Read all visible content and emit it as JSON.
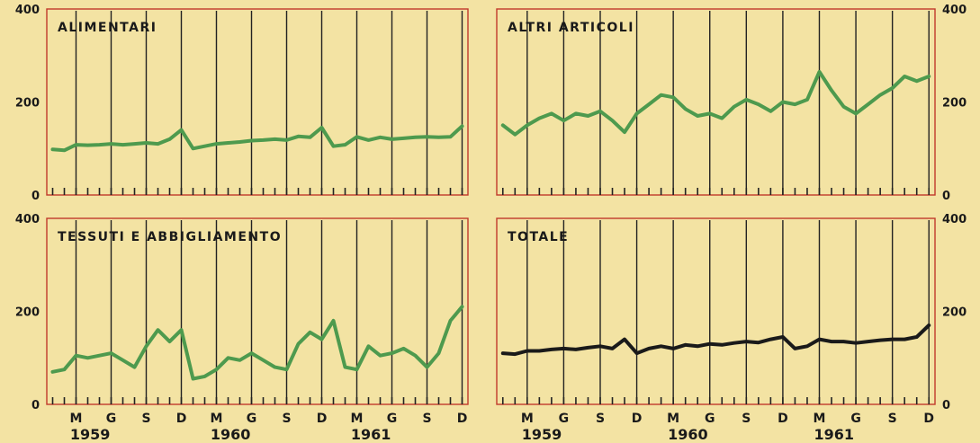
{
  "chart_data": [
    {
      "type": "line",
      "title": "ALIMENTARI",
      "ylim": [
        0,
        400
      ],
      "yticks": [
        "0",
        "200",
        "400"
      ],
      "x": [
        "1959-01",
        "1959-02",
        "1959-03",
        "1959-04",
        "1959-05",
        "1959-06",
        "1959-07",
        "1959-08",
        "1959-09",
        "1959-10",
        "1959-11",
        "1959-12",
        "1960-01",
        "1960-02",
        "1960-03",
        "1960-04",
        "1960-05",
        "1960-06",
        "1960-07",
        "1960-08",
        "1960-09",
        "1960-10",
        "1960-11",
        "1960-12",
        "1961-01",
        "1961-02",
        "1961-03",
        "1961-04",
        "1961-05",
        "1961-06",
        "1961-07",
        "1961-08",
        "1961-09",
        "1961-10",
        "1961-11",
        "1961-12"
      ],
      "series": [
        {
          "color": "#4e9a4e",
          "values": [
            98,
            96,
            108,
            107,
            108,
            110,
            108,
            110,
            112,
            110,
            120,
            140,
            100,
            105,
            110,
            112,
            114,
            117,
            118,
            120,
            118,
            126,
            124,
            145,
            105,
            108,
            125,
            118,
            124,
            120,
            122,
            124,
            125,
            124,
            125,
            148
          ]
        }
      ],
      "axis_side": "left",
      "grid": true
    },
    {
      "type": "line",
      "title": "ALTRI ARTICOLI",
      "ylim": [
        0,
        400
      ],
      "yticks": [
        "0",
        "200",
        "400"
      ],
      "x": [
        "1959-01",
        "1959-02",
        "1959-03",
        "1959-04",
        "1959-05",
        "1959-06",
        "1959-07",
        "1959-08",
        "1959-09",
        "1959-10",
        "1959-11",
        "1959-12",
        "1960-01",
        "1960-02",
        "1960-03",
        "1960-04",
        "1960-05",
        "1960-06",
        "1960-07",
        "1960-08",
        "1960-09",
        "1960-10",
        "1960-11",
        "1960-12",
        "1961-01",
        "1961-02",
        "1961-03",
        "1961-04",
        "1961-05",
        "1961-06",
        "1961-07",
        "1961-08",
        "1961-09",
        "1961-10",
        "1961-11",
        "1961-12"
      ],
      "series": [
        {
          "color": "#4e9a4e",
          "values": [
            150,
            130,
            150,
            165,
            175,
            160,
            175,
            170,
            180,
            160,
            135,
            175,
            195,
            215,
            210,
            185,
            170,
            175,
            165,
            190,
            205,
            195,
            180,
            200,
            195,
            205,
            265,
            225,
            190,
            175,
            195,
            215,
            230,
            255,
            245,
            255
          ]
        }
      ],
      "axis_side": "right",
      "grid": true
    },
    {
      "type": "line",
      "title": "TESSUTI E ABBIGLIAMENTO",
      "ylim": [
        0,
        400
      ],
      "yticks": [
        "0",
        "200",
        "400"
      ],
      "x": [
        "1959-01",
        "1959-02",
        "1959-03",
        "1959-04",
        "1959-05",
        "1959-06",
        "1959-07",
        "1959-08",
        "1959-09",
        "1959-10",
        "1959-11",
        "1959-12",
        "1960-01",
        "1960-02",
        "1960-03",
        "1960-04",
        "1960-05",
        "1960-06",
        "1960-07",
        "1960-08",
        "1960-09",
        "1960-10",
        "1960-11",
        "1960-12",
        "1961-01",
        "1961-02",
        "1961-03",
        "1961-04",
        "1961-05",
        "1961-06",
        "1961-07",
        "1961-08",
        "1961-09",
        "1961-10",
        "1961-11",
        "1961-12"
      ],
      "series": [
        {
          "color": "#4e9a4e",
          "values": [
            70,
            75,
            105,
            100,
            105,
            110,
            95,
            80,
            125,
            160,
            135,
            160,
            55,
            60,
            75,
            100,
            95,
            110,
            95,
            80,
            75,
            130,
            155,
            140,
            180,
            80,
            75,
            125,
            105,
            110,
            120,
            105,
            80,
            110,
            180,
            210
          ]
        }
      ],
      "axis_side": "left",
      "grid": true
    },
    {
      "type": "line",
      "title": "TOTALE",
      "ylim": [
        0,
        400
      ],
      "yticks": [
        "0",
        "200",
        "400"
      ],
      "x": [
        "1959-01",
        "1959-02",
        "1959-03",
        "1959-04",
        "1959-05",
        "1959-06",
        "1959-07",
        "1959-08",
        "1959-09",
        "1959-10",
        "1959-11",
        "1959-12",
        "1960-01",
        "1960-02",
        "1960-03",
        "1960-04",
        "1960-05",
        "1960-06",
        "1960-07",
        "1960-08",
        "1960-09",
        "1960-10",
        "1960-11",
        "1960-12",
        "1961-01",
        "1961-02",
        "1961-03",
        "1961-04",
        "1961-05",
        "1961-06",
        "1961-07",
        "1961-08",
        "1961-09",
        "1961-10",
        "1961-11",
        "1961-12"
      ],
      "series": [
        {
          "color": "#1a1a1a",
          "values": [
            110,
            108,
            115,
            115,
            118,
            120,
            118,
            122,
            125,
            120,
            140,
            110,
            120,
            125,
            120,
            128,
            125,
            130,
            128,
            132,
            135,
            133,
            140,
            145,
            120,
            125,
            140,
            135,
            135,
            132,
            135,
            138,
            140,
            140,
            145,
            170
          ]
        }
      ],
      "axis_side": "right",
      "grid": true
    }
  ],
  "x_axis": {
    "month_labels": [
      "M",
      "G",
      "S",
      "D",
      "M",
      "G",
      "S",
      "D",
      "M",
      "G",
      "S",
      "D"
    ],
    "year_labels": [
      "1959",
      "1960",
      "1961"
    ]
  },
  "colors": {
    "background": "#f3e3a3",
    "frame": "#c0392b",
    "grid": "#222222",
    "text": "#1a1a1a"
  }
}
